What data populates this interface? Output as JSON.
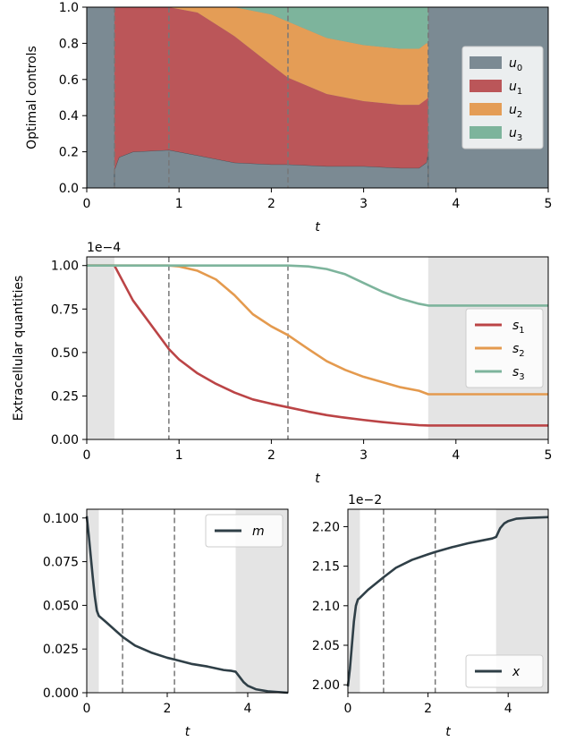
{
  "chart_data": [
    {
      "type": "area",
      "stacked": true,
      "xlabel": "t",
      "ylabel": "Optimal controls",
      "xlim": [
        0,
        5
      ],
      "ylim": [
        0,
        1
      ],
      "xticks": [
        "0",
        "1",
        "2",
        "3",
        "4",
        "5"
      ],
      "yticks": [
        "0.0",
        "0.2",
        "0.4",
        "0.6",
        "0.8",
        "1.0"
      ],
      "background_color": "#7b8a93",
      "vlines": [
        0.3,
        0.89,
        2.18,
        3.7
      ],
      "legend_position": "center-right",
      "x": [
        0.3,
        0.35,
        0.5,
        0.89,
        1.2,
        1.6,
        2.0,
        2.18,
        2.6,
        3.0,
        3.4,
        3.6,
        3.68,
        3.7
      ],
      "series": [
        {
          "name": "u_0",
          "color": "#7b8a93",
          "values": [
            0.1,
            0.17,
            0.2,
            0.21,
            0.18,
            0.14,
            0.13,
            0.13,
            0.12,
            0.12,
            0.11,
            0.11,
            0.14,
            0.2
          ]
        },
        {
          "name": "u_1",
          "color": "#bb5659",
          "values": [
            0.9,
            0.83,
            0.8,
            0.79,
            0.79,
            0.7,
            0.55,
            0.48,
            0.4,
            0.36,
            0.35,
            0.35,
            0.35,
            0.3
          ]
        },
        {
          "name": "u_2",
          "color": "#e49d56",
          "values": [
            0.0,
            0.0,
            0.0,
            0.0,
            0.03,
            0.16,
            0.28,
            0.31,
            0.31,
            0.31,
            0.31,
            0.31,
            0.31,
            0.3
          ]
        },
        {
          "name": "u_3",
          "color": "#7db49c",
          "values": [
            0.0,
            0.0,
            0.0,
            0.0,
            0.0,
            0.0,
            0.04,
            0.08,
            0.17,
            0.21,
            0.23,
            0.23,
            0.2,
            0.2
          ]
        }
      ]
    },
    {
      "type": "line",
      "xlabel": "t",
      "ylabel": "Extracellular quantities",
      "scale_label": "1e−4",
      "xlim": [
        0,
        5
      ],
      "ylim": [
        0,
        1.05
      ],
      "xticks": [
        "0",
        "1",
        "2",
        "3",
        "4",
        "5"
      ],
      "yticks": [
        "0.00",
        "0.25",
        "0.50",
        "0.75",
        "1.00"
      ],
      "shaded": [
        [
          0,
          0.3
        ],
        [
          3.7,
          5
        ]
      ],
      "vlines": [
        0.89,
        2.18
      ],
      "legend_position": "center-right",
      "x": [
        0,
        0.3,
        0.5,
        0.89,
        1.0,
        1.2,
        1.4,
        1.6,
        1.8,
        2.0,
        2.18,
        2.4,
        2.6,
        2.8,
        3.0,
        3.2,
        3.4,
        3.6,
        3.7,
        4.0,
        4.5,
        5.0
      ],
      "series": [
        {
          "name": "s_1",
          "color": "#bb4446",
          "values": [
            1.0,
            1.0,
            0.8,
            0.52,
            0.46,
            0.38,
            0.32,
            0.27,
            0.23,
            0.205,
            0.185,
            0.16,
            0.14,
            0.125,
            0.112,
            0.1,
            0.09,
            0.082,
            0.08,
            0.08,
            0.08,
            0.08
          ]
        },
        {
          "name": "s_2",
          "color": "#e49a4e",
          "values": [
            1.0,
            1.0,
            1.0,
            1.0,
            0.995,
            0.97,
            0.92,
            0.83,
            0.72,
            0.65,
            0.6,
            0.52,
            0.45,
            0.4,
            0.36,
            0.33,
            0.3,
            0.28,
            0.26,
            0.26,
            0.26,
            0.26
          ]
        },
        {
          "name": "s_3",
          "color": "#7db49c",
          "values": [
            1.0,
            1.0,
            1.0,
            1.0,
            1.0,
            1.0,
            1.0,
            1.0,
            1.0,
            1.0,
            1.0,
            0.995,
            0.98,
            0.95,
            0.9,
            0.85,
            0.81,
            0.78,
            0.77,
            0.77,
            0.77,
            0.77
          ]
        }
      ]
    },
    {
      "type": "line",
      "xlabel": "t",
      "ylabel": "",
      "xlim": [
        0,
        5
      ],
      "ylim": [
        0,
        0.105
      ],
      "xticks": [
        "0",
        "2",
        "4"
      ],
      "yticks": [
        "0.000",
        "0.025",
        "0.050",
        "0.075",
        "0.100"
      ],
      "shaded": [
        [
          0,
          0.3
        ],
        [
          3.7,
          5
        ]
      ],
      "vlines": [
        0.89,
        2.18
      ],
      "legend_position": "top-right",
      "x": [
        0,
        0.05,
        0.1,
        0.15,
        0.2,
        0.25,
        0.3,
        0.5,
        0.89,
        1.2,
        1.6,
        2.0,
        2.18,
        2.6,
        3.0,
        3.4,
        3.6,
        3.7,
        3.8,
        3.9,
        4.0,
        4.2,
        4.5,
        5.0
      ],
      "series": [
        {
          "name": "m",
          "color": "#2f3f47",
          "values": [
            0.101,
            0.09,
            0.078,
            0.066,
            0.055,
            0.047,
            0.044,
            0.04,
            0.032,
            0.027,
            0.023,
            0.02,
            0.019,
            0.0165,
            0.015,
            0.013,
            0.0125,
            0.012,
            0.009,
            0.006,
            0.004,
            0.002,
            0.0008,
            0.0
          ]
        }
      ]
    },
    {
      "type": "line",
      "xlabel": "t",
      "ylabel": "",
      "scale_label": "1e−2",
      "xlim": [
        0,
        5
      ],
      "ylim": [
        1.99,
        2.222
      ],
      "xticks": [
        "0",
        "2",
        "4"
      ],
      "yticks": [
        "2.00",
        "2.05",
        "2.10",
        "2.15",
        "2.20"
      ],
      "shaded": [
        [
          0,
          0.3
        ],
        [
          3.7,
          5
        ]
      ],
      "vlines": [
        0.89,
        2.18
      ],
      "legend_position": "bottom-right",
      "x": [
        0,
        0.05,
        0.1,
        0.15,
        0.2,
        0.25,
        0.3,
        0.5,
        0.89,
        1.2,
        1.6,
        2.0,
        2.18,
        2.6,
        3.0,
        3.4,
        3.6,
        3.7,
        3.8,
        3.9,
        4.0,
        4.2,
        4.5,
        5.0
      ],
      "series": [
        {
          "name": "x",
          "color": "#2f3f47",
          "values": [
            1.998,
            2.02,
            2.05,
            2.08,
            2.1,
            2.108,
            2.11,
            2.12,
            2.136,
            2.148,
            2.158,
            2.165,
            2.168,
            2.174,
            2.179,
            2.183,
            2.185,
            2.187,
            2.198,
            2.204,
            2.207,
            2.21,
            2.211,
            2.212
          ]
        }
      ]
    }
  ]
}
